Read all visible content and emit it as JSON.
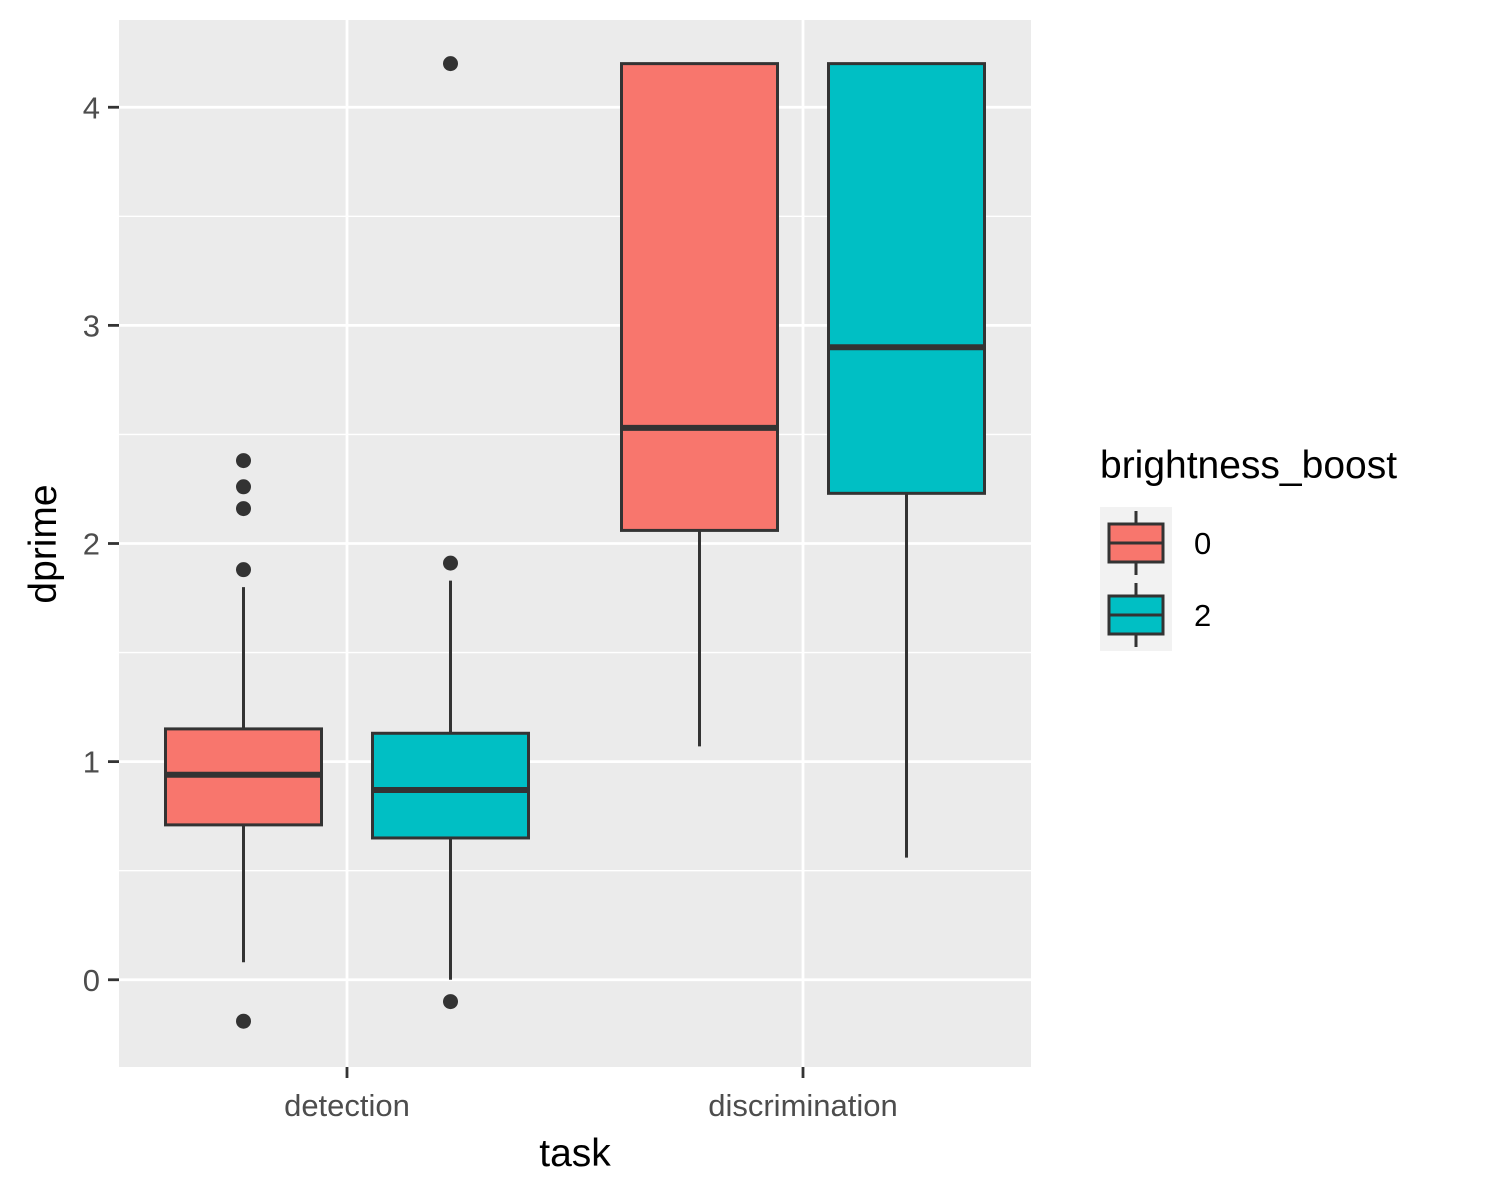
{
  "chart_data": {
    "type": "boxplot",
    "xlabel": "task",
    "ylabel": "dprime",
    "categories": [
      "detection",
      "discrimination"
    ],
    "ylim": [
      -0.4,
      4.4
    ],
    "y_ticks": [
      0,
      1,
      2,
      3,
      4
    ],
    "y_tick_labels": [
      "0",
      "1",
      "2",
      "3",
      "4"
    ],
    "grid": true,
    "legend": {
      "title": "brightness_boost",
      "position": "right",
      "entries": [
        {
          "label": "0",
          "color": "#F8766D"
        },
        {
          "label": "2",
          "color": "#00BFC4"
        }
      ]
    },
    "series": [
      {
        "group": "0",
        "color": "#F8766D",
        "boxes": [
          {
            "category": "detection",
            "lower_whisker": 0.08,
            "q1": 0.71,
            "median": 0.94,
            "q3": 1.15,
            "upper_whisker": 1.8,
            "outliers": [
              -0.19,
              1.88,
              2.16,
              2.26,
              2.38
            ]
          },
          {
            "category": "discrimination",
            "lower_whisker": 1.07,
            "q1": 2.06,
            "median": 2.53,
            "q3": 4.2,
            "upper_whisker": 4.2,
            "outliers": []
          }
        ]
      },
      {
        "group": "2",
        "color": "#00BFC4",
        "boxes": [
          {
            "category": "detection",
            "lower_whisker": 0.0,
            "q1": 0.65,
            "median": 0.87,
            "q3": 1.13,
            "upper_whisker": 1.83,
            "outliers": [
              -0.1,
              1.91,
              4.2
            ]
          },
          {
            "category": "discrimination",
            "lower_whisker": 0.56,
            "q1": 2.23,
            "median": 2.9,
            "q3": 4.2,
            "upper_whisker": 4.2,
            "outliers": []
          }
        ]
      }
    ]
  }
}
